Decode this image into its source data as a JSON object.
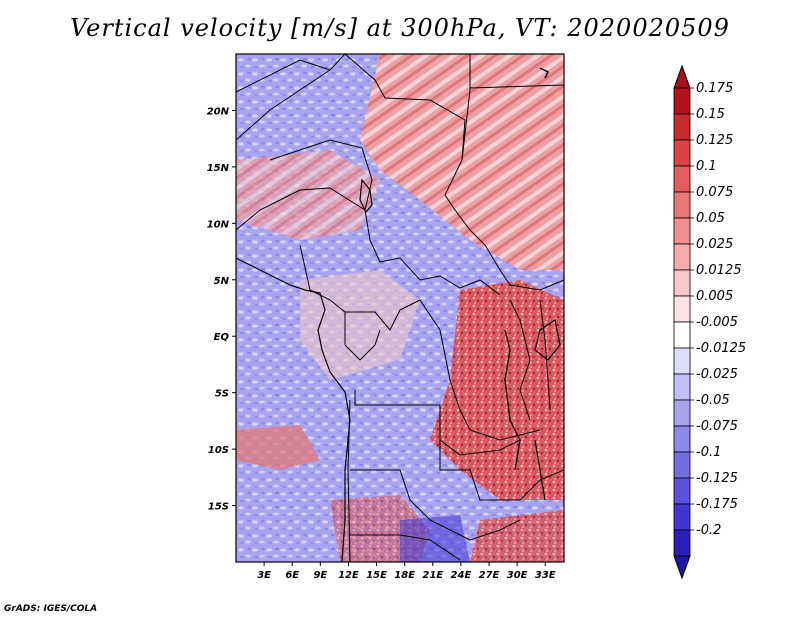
{
  "title": "Vertical velocity [m/s] at 300hPa, VT: 2020020509",
  "credit": "GrADS: IGES/COLA",
  "map": {
    "lon_range": [
      0,
      35
    ],
    "lat_range": [
      -20,
      25
    ],
    "lat_ticks": [
      {
        "lat": 20,
        "label": "20N"
      },
      {
        "lat": 15,
        "label": "15N"
      },
      {
        "lat": 10,
        "label": "10N"
      },
      {
        "lat": 5,
        "label": "5N"
      },
      {
        "lat": 0,
        "label": "EQ"
      },
      {
        "lat": -5,
        "label": "5S"
      },
      {
        "lat": -10,
        "label": "10S"
      },
      {
        "lat": -15,
        "label": "15S"
      }
    ],
    "lon_ticks": [
      {
        "lon": 3,
        "label": "3E"
      },
      {
        "lon": 6,
        "label": "6E"
      },
      {
        "lon": 9,
        "label": "9E"
      },
      {
        "lon": 12,
        "label": "12E"
      },
      {
        "lon": 15,
        "label": "15E"
      },
      {
        "lon": 18,
        "label": "18E"
      },
      {
        "lon": 21,
        "label": "21E"
      },
      {
        "lon": 24,
        "label": "24E"
      },
      {
        "lon": 27,
        "label": "27E"
      },
      {
        "lon": 30,
        "label": "30E"
      },
      {
        "lon": 33,
        "label": "33E"
      }
    ]
  },
  "colorbar": {
    "levels": [
      {
        "label": "0.175",
        "color": "#b3121b"
      },
      {
        "label": "0.15",
        "color": "#c92a2a"
      },
      {
        "label": "0.125",
        "color": "#d94444"
      },
      {
        "label": "0.1",
        "color": "#e35d5d"
      },
      {
        "label": "0.075",
        "color": "#eb7676"
      },
      {
        "label": "0.05",
        "color": "#f19090"
      },
      {
        "label": "0.025",
        "color": "#f6acac"
      },
      {
        "label": "0.0125",
        "color": "#f9c8c8"
      },
      {
        "label": "0.005",
        "color": "#fce3e3"
      },
      {
        "label": "-0.005",
        "color": "#ffffff"
      },
      {
        "label": "-0.0125",
        "color": "#dedcfb"
      },
      {
        "label": "-0.025",
        "color": "#c2bff6"
      },
      {
        "label": "-0.05",
        "color": "#a7a3f1"
      },
      {
        "label": "-0.075",
        "color": "#8d88ec"
      },
      {
        "label": "-0.1",
        "color": "#736de4"
      },
      {
        "label": "-0.125",
        "color": "#5a52dc"
      },
      {
        "label": "-0.175",
        "color": "#3f37cf"
      },
      {
        "label": "-0.2",
        "color": "#2a21bd"
      }
    ],
    "top_color": "#a3101a",
    "bottom_color": "#1e16a8"
  }
}
